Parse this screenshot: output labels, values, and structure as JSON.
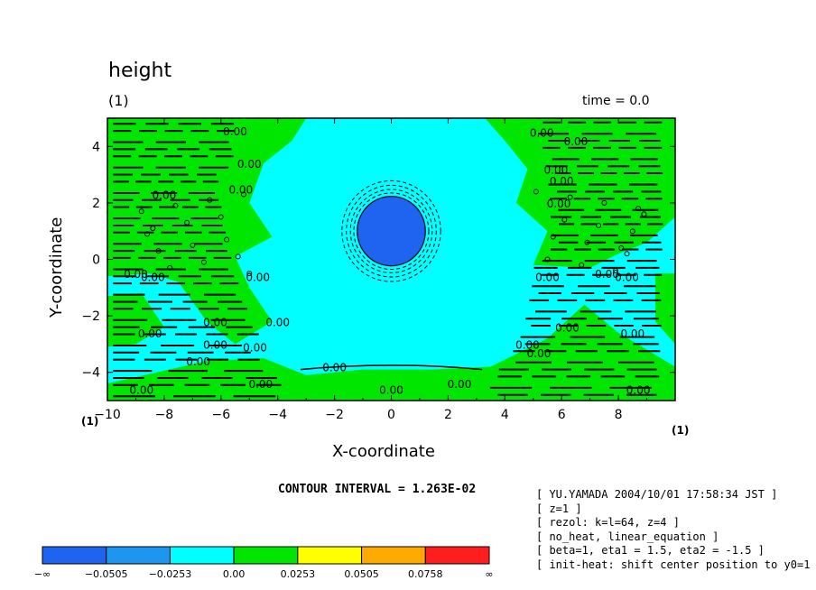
{
  "header": {
    "title": "height",
    "panel_label": "(1)",
    "time_label": "time = 0.0"
  },
  "corner_labels": {
    "left": "(1)",
    "right": "(1)"
  },
  "contour_interval": "CONTOUR INTERVAL = 1.263E-02",
  "info_lines": [
    "[ YU.YAMADA 2004/10/01 17:58:34 JST ]",
    "[ z=1 ]",
    "[ rezol: k=l=64, z=4 ]",
    "[ no_heat, linear_equation ]",
    "[ beta=1, eta1 = 1.5, eta2 = -1.5 ]",
    "[ init-heat: shift center position to y0=1 ]"
  ],
  "colors": {
    "dark_blue": "#1e64f0",
    "mid_blue": "#1e96f0",
    "cyan": "#00ffff",
    "green": "#00e600",
    "yellow": "#ffff00",
    "orange": "#ffaa00",
    "red": "#ff1e1e"
  },
  "chart_data": {
    "type": "contour",
    "title": "height",
    "xlabel": "X-coordinate",
    "ylabel": "Y-coordinate",
    "xlim": [
      -10,
      10
    ],
    "ylim": [
      -5,
      5
    ],
    "xticks": [
      -10,
      -8,
      -6,
      -4,
      -2,
      0,
      2,
      4,
      6,
      8
    ],
    "yticks": [
      -4,
      -2,
      0,
      2,
      4
    ],
    "contour_line_label": "0.00",
    "low_center": {
      "x": 0,
      "y": 1,
      "radius": 1.2
    },
    "legend": {
      "levels": [
        "-∞",
        "-0.0505",
        "-0.0253",
        "0.00",
        "0.0253",
        "0.0505",
        "0.0758",
        "∞"
      ],
      "colors": [
        "#1e64f0",
        "#1e96f0",
        "#00ffff",
        "#00e600",
        "#ffff00",
        "#ffaa00",
        "#ff1e1e"
      ]
    }
  }
}
